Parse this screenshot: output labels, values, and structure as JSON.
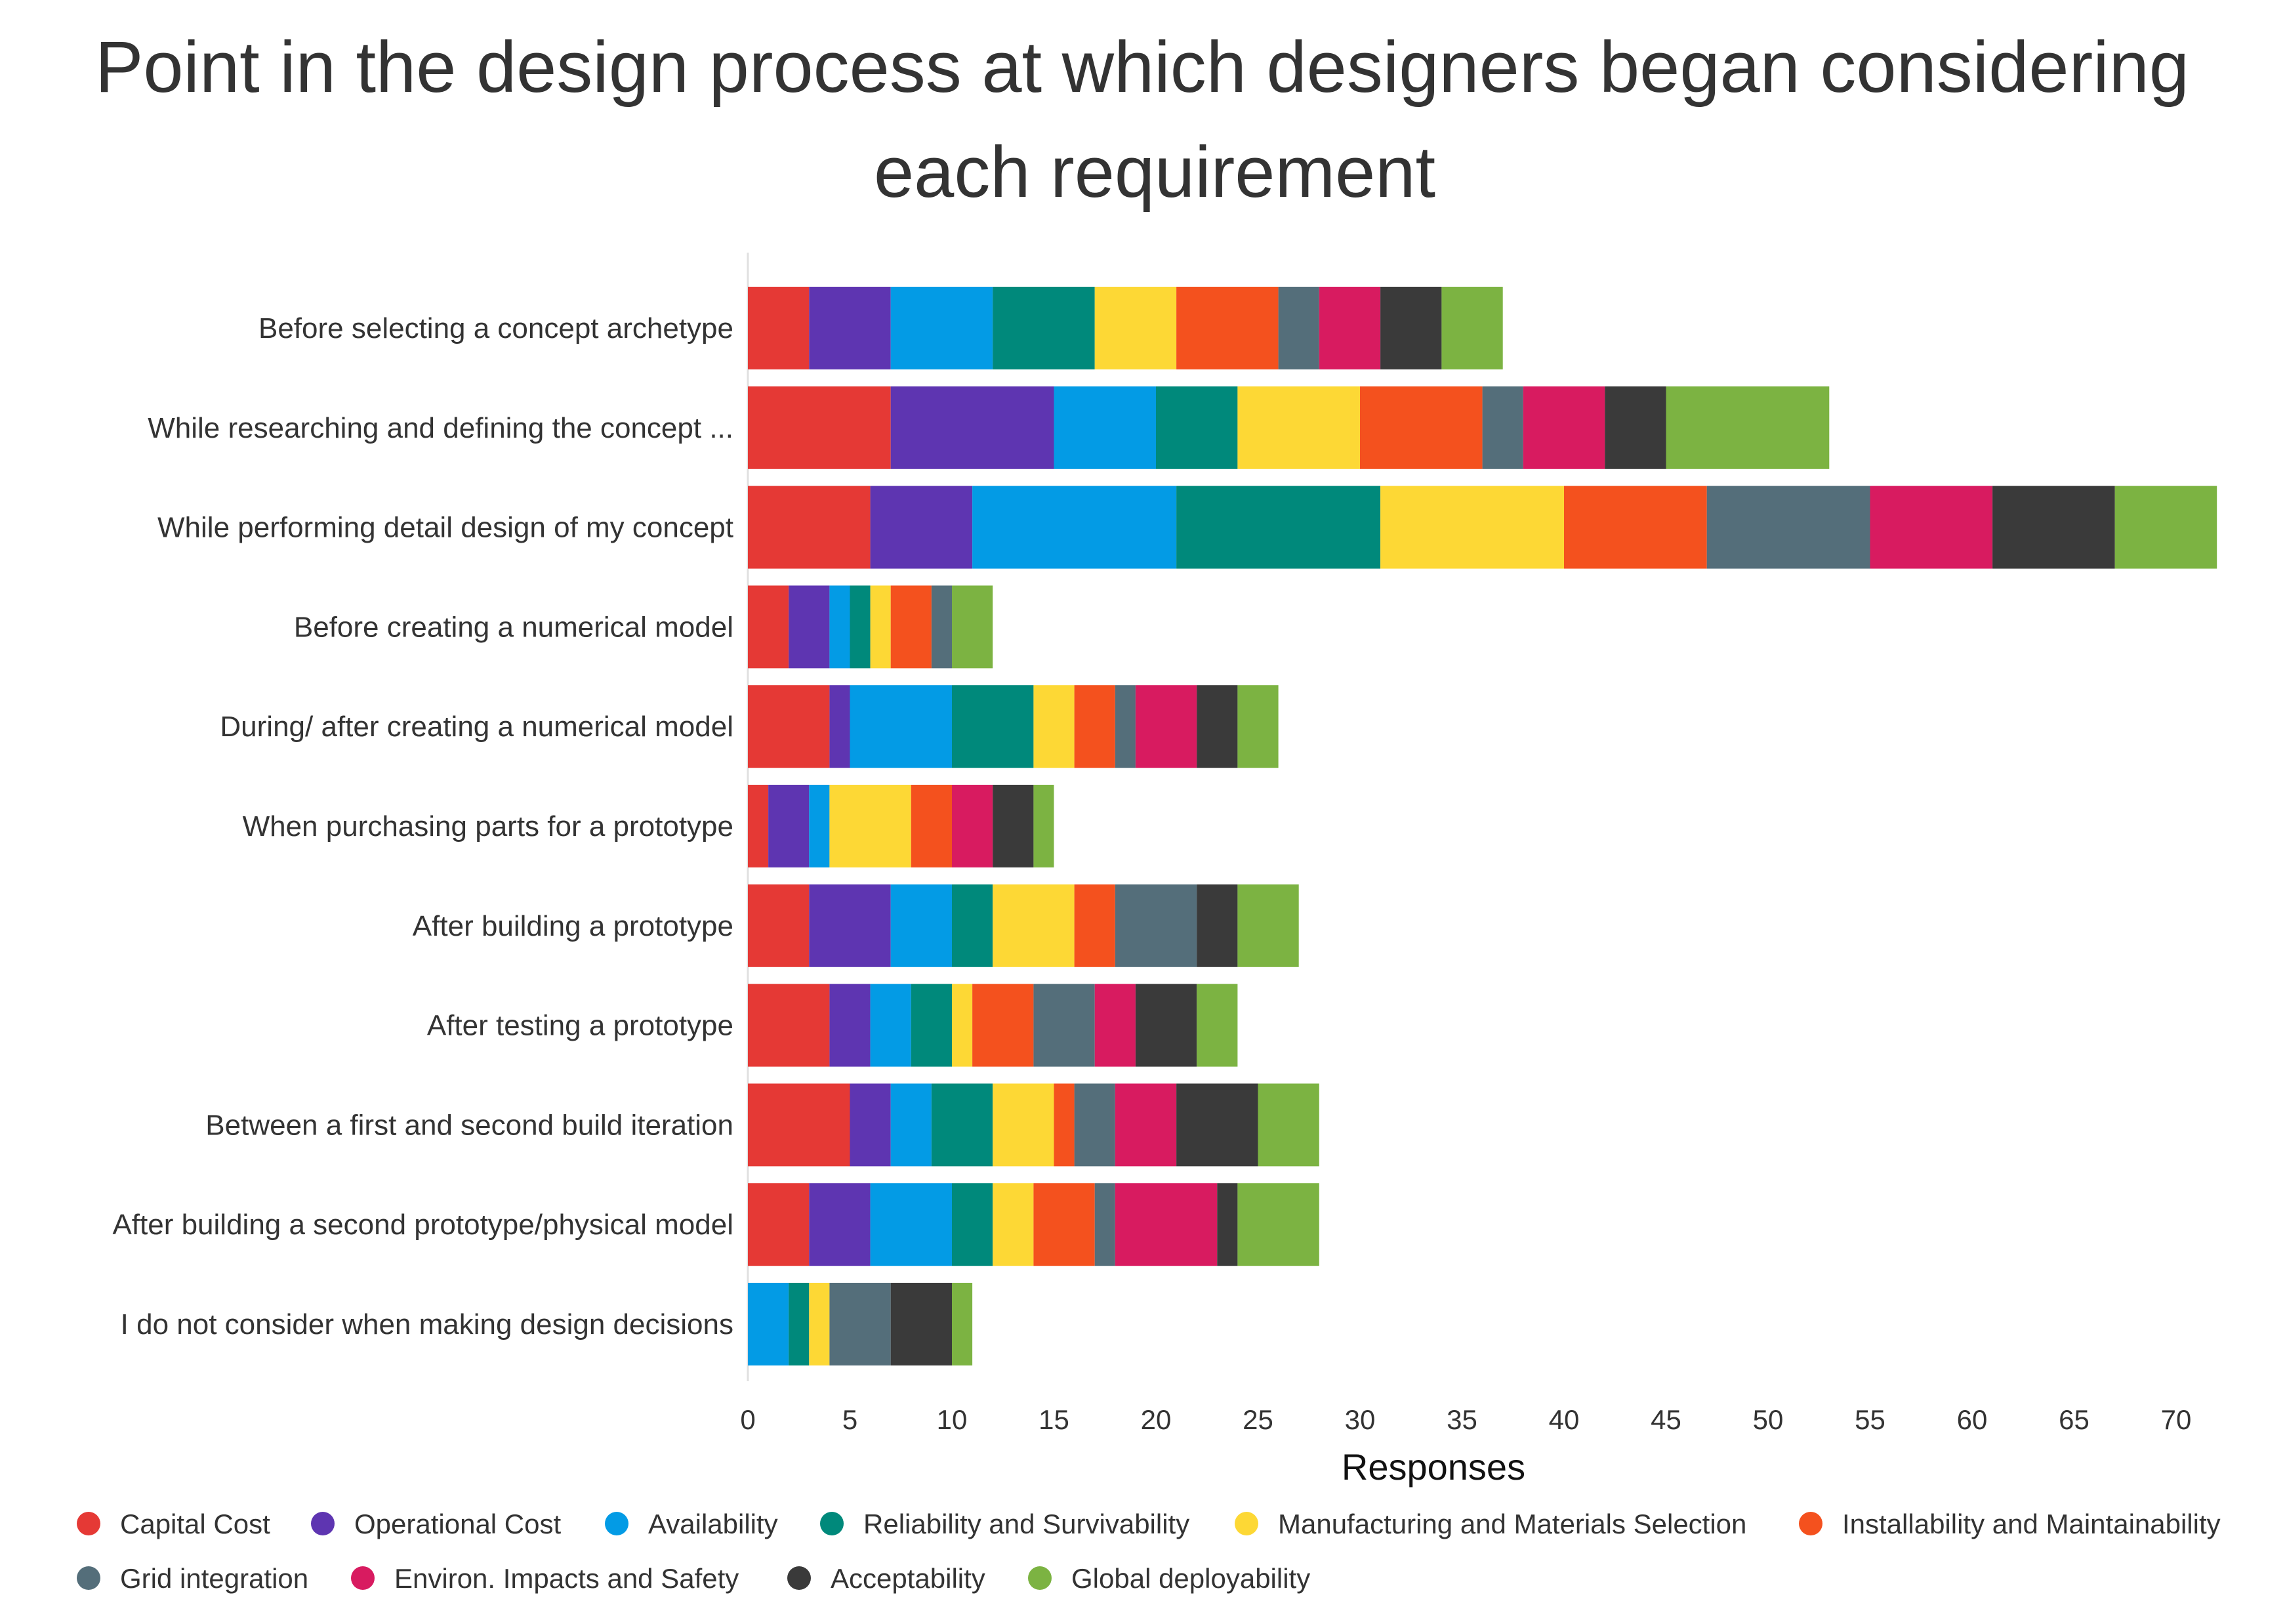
{
  "chart_data": {
    "type": "bar",
    "orientation": "horizontal",
    "stacked": true,
    "title": "Point in the design process at which designers began considering each requirement",
    "title_lines": [
      "Point in the design process at which designers began considering",
      "each requirement"
    ],
    "xlabel": "Responses",
    "ylabel": "",
    "xlim": [
      0,
      72
    ],
    "xticks": [
      0,
      5,
      10,
      15,
      20,
      25,
      30,
      35,
      40,
      45,
      50,
      55,
      60,
      65,
      70
    ],
    "grid": false,
    "legend_position": "bottom",
    "categories": [
      "Before selecting a concept archetype",
      "While researching and defining the concept ...",
      "While performing detail design of my concept",
      "Before creating a numerical model",
      "During/ after creating a numerical model",
      "When purchasing parts for a prototype",
      "After building a prototype",
      "After testing a prototype",
      "Between a first and second build iteration",
      "After building a second prototype/physical model",
      "I do not consider when making design decisions"
    ],
    "series": [
      {
        "name": "Capital Cost",
        "color": "#e53935",
        "values": [
          3,
          7,
          6,
          2,
          4,
          1,
          3,
          4,
          5,
          3,
          0
        ]
      },
      {
        "name": "Operational Cost",
        "color": "#5e35b1",
        "values": [
          4,
          8,
          5,
          2,
          1,
          2,
          4,
          2,
          2,
          3,
          0
        ]
      },
      {
        "name": "Availability",
        "color": "#039be5",
        "values": [
          5,
          5,
          10,
          1,
          5,
          1,
          3,
          2,
          2,
          4,
          2
        ]
      },
      {
        "name": "Reliability and Survivability",
        "color": "#00897b",
        "values": [
          5,
          4,
          10,
          1,
          4,
          0,
          2,
          2,
          3,
          2,
          1
        ]
      },
      {
        "name": "Manufacturing and Materials Selection",
        "color": "#fdd835",
        "values": [
          4,
          6,
          9,
          1,
          2,
          4,
          4,
          1,
          3,
          2,
          1
        ]
      },
      {
        "name": "Installability and Maintainability",
        "color": "#f4511e",
        "values": [
          5,
          6,
          7,
          2,
          2,
          2,
          2,
          3,
          1,
          3,
          0
        ]
      },
      {
        "name": "Grid integration",
        "color": "#546e7a",
        "values": [
          2,
          2,
          8,
          1,
          1,
          0,
          4,
          3,
          2,
          1,
          3
        ]
      },
      {
        "name": "Environ. Impacts and Safety",
        "color": "#d81b60",
        "values": [
          3,
          4,
          6,
          0,
          3,
          2,
          0,
          2,
          3,
          5,
          0
        ]
      },
      {
        "name": "Acceptability",
        "color": "#3a3a3a",
        "values": [
          3,
          3,
          6,
          0,
          2,
          2,
          2,
          3,
          4,
          1,
          3
        ]
      },
      {
        "name": "Global deployability",
        "color": "#7cb342",
        "values": [
          3,
          8,
          5,
          2,
          2,
          1,
          3,
          2,
          3,
          4,
          1
        ]
      }
    ]
  }
}
